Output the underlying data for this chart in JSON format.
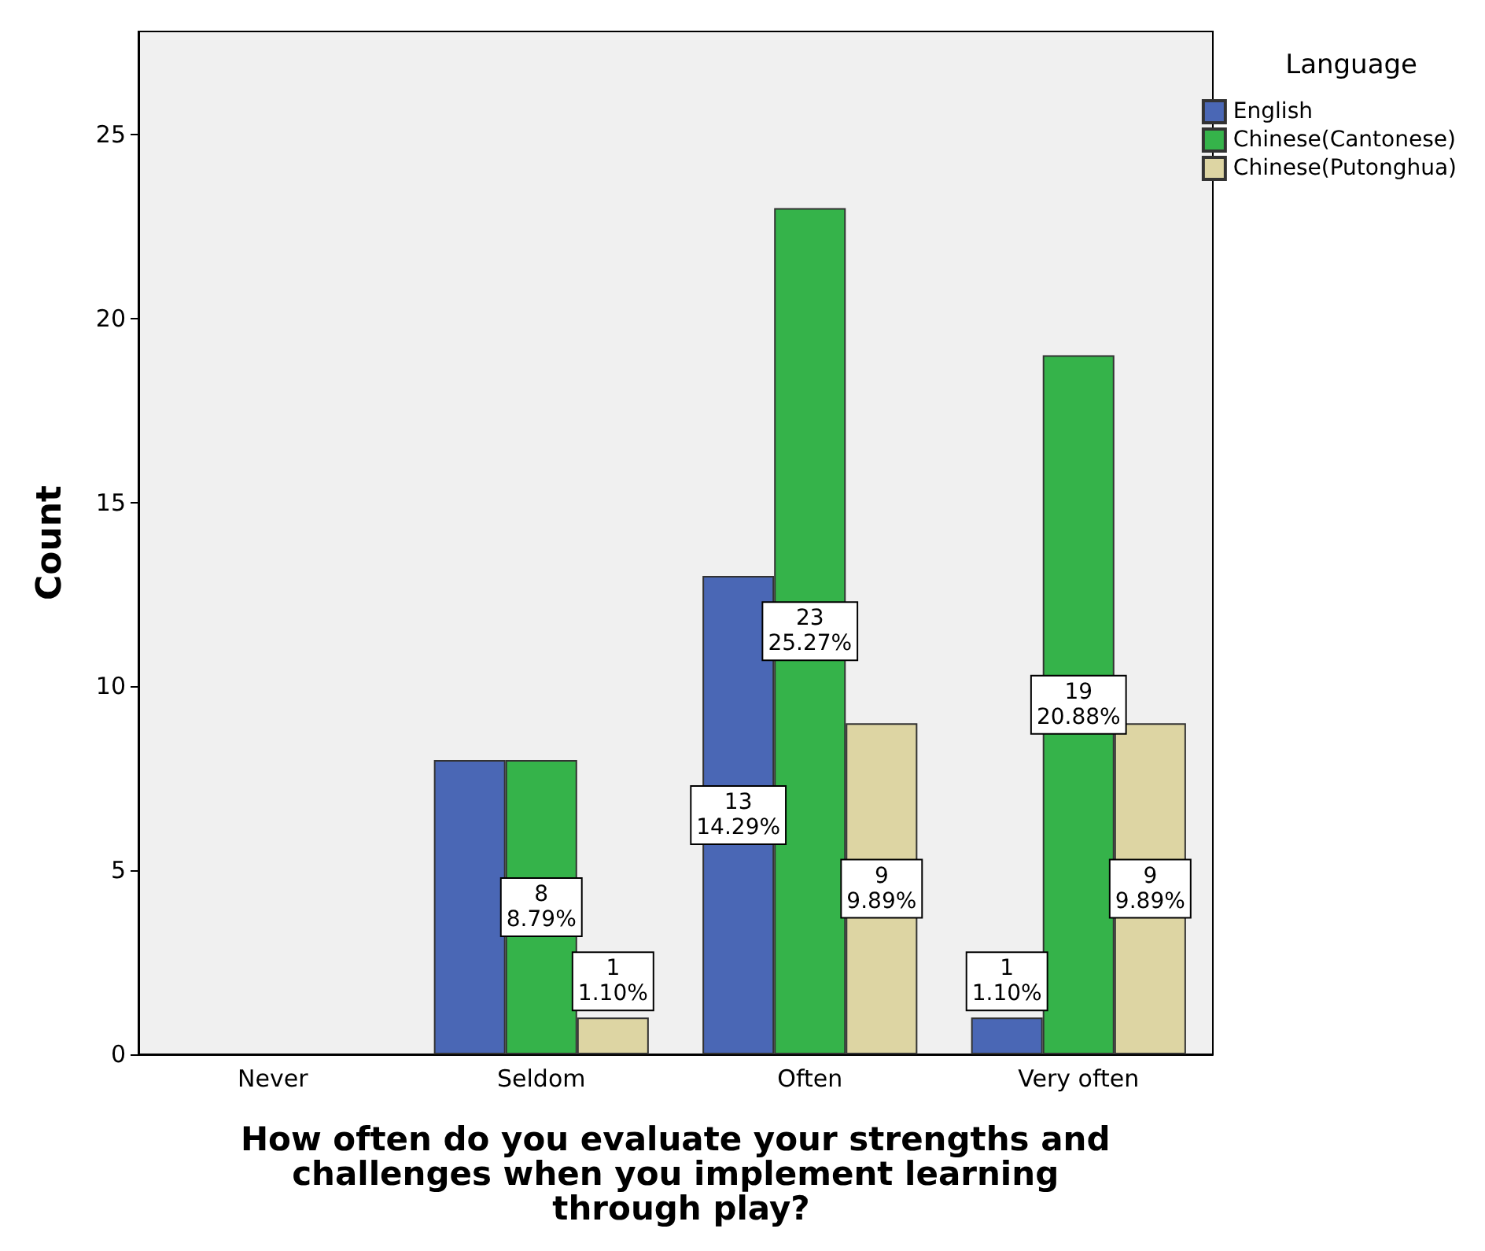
{
  "chart_data": {
    "type": "bar",
    "categories": [
      "Never",
      "Seldom",
      "Often",
      "Very often"
    ],
    "xlabel": "How often do you evaluate your strengths and challenges when you implement learning through play?",
    "ylabel": "Count",
    "legend_title": "Language",
    "series": [
      {
        "name": "English",
        "color": "#4a67b5",
        "values": [
          null,
          8,
          13,
          1
        ],
        "value_labels": [
          null,
          null,
          "13\n14.29%",
          "1\n1.10%"
        ]
      },
      {
        "name": "Chinese(Cantonese)",
        "color": "#35b34a",
        "values": [
          null,
          8,
          23,
          19
        ],
        "value_labels": [
          null,
          "8\n8.79%",
          "23\n25.27%",
          "19\n20.88%"
        ]
      },
      {
        "name": "Chinese(Putonghua)",
        "color": "#ddd5a3",
        "values": [
          null,
          1,
          9,
          9
        ],
        "value_labels": [
          null,
          "1\n1.10%",
          "9\n9.89%",
          "9\n9.89%"
        ]
      }
    ],
    "ylim": [
      0,
      27.8
    ],
    "yticks": [
      0,
      5,
      10,
      15,
      20,
      25
    ],
    "grid": false,
    "legend": "top right"
  }
}
